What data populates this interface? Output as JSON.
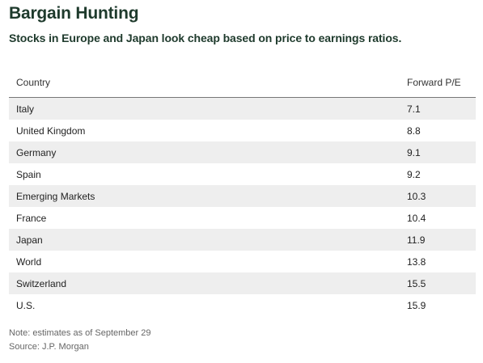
{
  "chart_data": {
    "type": "table",
    "title": "Bargain Hunting",
    "subtitle": "Stocks in Europe and Japan look cheap based on price to earnings ratios.",
    "columns": [
      "Country",
      "Forward P/E"
    ],
    "rows": [
      {
        "country": "Italy",
        "value": "7.1"
      },
      {
        "country": "United Kingdom",
        "value": "8.8"
      },
      {
        "country": "Germany",
        "value": "9.1"
      },
      {
        "country": "Spain",
        "value": "9.2"
      },
      {
        "country": "Emerging Markets",
        "value": "10.3"
      },
      {
        "country": "France",
        "value": "10.4"
      },
      {
        "country": "Japan",
        "value": "11.9"
      },
      {
        "country": "World",
        "value": "13.8"
      },
      {
        "country": "Switzerland",
        "value": "15.5"
      },
      {
        "country": "U.S.",
        "value": "15.9"
      }
    ],
    "note": "Note: estimates as of September 29",
    "source": "Source: J.P. Morgan"
  },
  "colors": {
    "title": "#1e3a2c",
    "row_shade": "#eeeeee",
    "header_rule": "#777777"
  }
}
